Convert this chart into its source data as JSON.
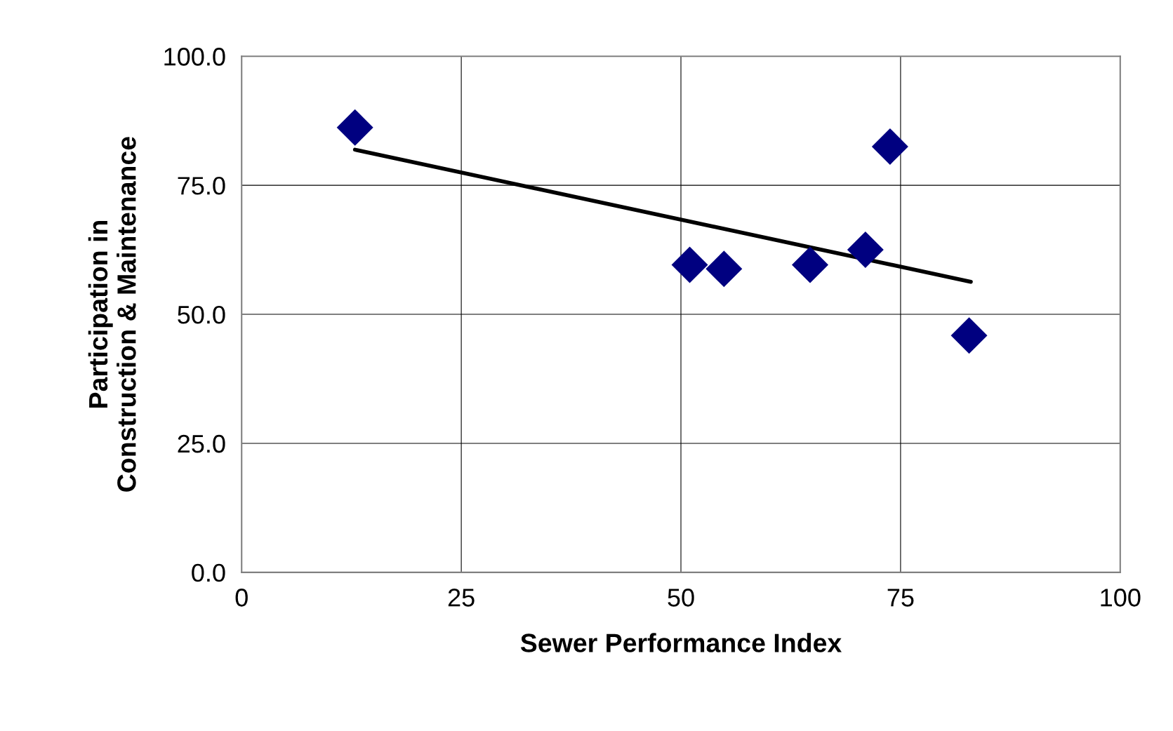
{
  "chart_data": {
    "type": "scatter",
    "xlabel": "Sewer Performance Index",
    "ylabel": "Participation in\nConstruction & Maintenance",
    "series": [
      {
        "color": "#000080",
        "marker": "diamond",
        "x": [
          12.9,
          51.0,
          54.9,
          64.7,
          71.0,
          73.8,
          82.8
        ],
        "values": [
          86.2,
          59.6,
          58.8,
          59.6,
          62.5,
          82.5,
          45.9
        ]
      },
      {
        "type": "line",
        "color": "#000000",
        "marker": "none",
        "line_style": "solid",
        "x": [
          12.9,
          83.0
        ],
        "values": [
          81.9,
          56.3
        ]
      }
    ],
    "xlim": [
      0,
      100
    ],
    "xticks": [
      0,
      25,
      50,
      75,
      100
    ],
    "ylim": [
      0,
      100
    ],
    "yticks": [
      {
        "value": 0,
        "label": "0.0"
      },
      {
        "value": 25,
        "label": "25.0"
      },
      {
        "value": 50,
        "label": "50.0"
      },
      {
        "value": 75,
        "label": "75.0"
      },
      {
        "value": 100,
        "label": "100.0"
      }
    ],
    "grid": true,
    "legend": false
  }
}
